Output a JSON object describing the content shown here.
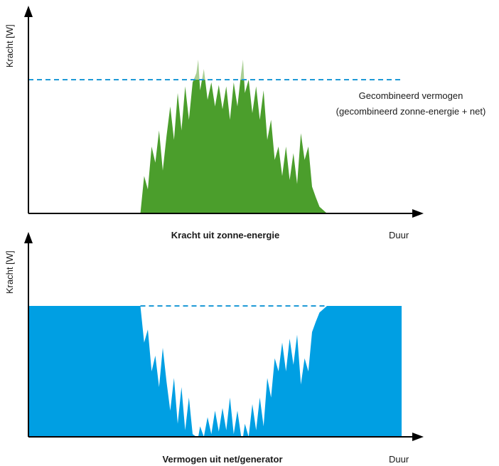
{
  "colors": {
    "solar": "#4b9e2c",
    "solar_peak": "#a9cf94",
    "grid": "#009fe3",
    "threshold": "#1f9ad6",
    "axis": "#000000"
  },
  "top_chart": {
    "ylabel": "Kracht [W]",
    "xlabel": "Kracht uit zonne-energie",
    "x_end_label": "Duur",
    "annotation_line1": "Gecombineerd vermogen",
    "annotation_line2": "(gecombineerd zonne-energie + net)"
  },
  "bottom_chart": {
    "ylabel": "Kracht [W]",
    "xlabel": "Vermogen uit net/generator",
    "x_end_label": "Duur"
  },
  "chart_data": {
    "type": "area",
    "note": "",
    "threshold_level": 1.0,
    "x_range": [
      0,
      1
    ],
    "y_range": [
      0,
      1.3
    ],
    "solar_profile": [
      [
        0.3,
        0.0
      ],
      [
        0.31,
        0.28
      ],
      [
        0.32,
        0.18
      ],
      [
        0.33,
        0.5
      ],
      [
        0.34,
        0.38
      ],
      [
        0.35,
        0.62
      ],
      [
        0.36,
        0.32
      ],
      [
        0.37,
        0.58
      ],
      [
        0.38,
        0.8
      ],
      [
        0.39,
        0.55
      ],
      [
        0.4,
        0.9
      ],
      [
        0.41,
        0.62
      ],
      [
        0.42,
        0.95
      ],
      [
        0.43,
        0.7
      ],
      [
        0.44,
        0.98
      ],
      [
        0.45,
        1.05
      ],
      [
        0.455,
        1.15
      ],
      [
        0.46,
        0.92
      ],
      [
        0.47,
        1.08
      ],
      [
        0.48,
        0.85
      ],
      [
        0.49,
        0.98
      ],
      [
        0.5,
        0.8
      ],
      [
        0.51,
        0.96
      ],
      [
        0.52,
        0.78
      ],
      [
        0.53,
        0.95
      ],
      [
        0.54,
        0.7
      ],
      [
        0.55,
        0.98
      ],
      [
        0.56,
        0.8
      ],
      [
        0.57,
        1.05
      ],
      [
        0.575,
        1.15
      ],
      [
        0.58,
        0.9
      ],
      [
        0.59,
        1.0
      ],
      [
        0.6,
        0.75
      ],
      [
        0.61,
        0.95
      ],
      [
        0.62,
        0.7
      ],
      [
        0.63,
        0.92
      ],
      [
        0.64,
        0.55
      ],
      [
        0.65,
        0.7
      ],
      [
        0.66,
        0.4
      ],
      [
        0.67,
        0.5
      ],
      [
        0.68,
        0.28
      ],
      [
        0.69,
        0.5
      ],
      [
        0.7,
        0.25
      ],
      [
        0.71,
        0.45
      ],
      [
        0.72,
        0.22
      ],
      [
        0.73,
        0.6
      ],
      [
        0.74,
        0.4
      ],
      [
        0.75,
        0.5
      ],
      [
        0.76,
        0.2
      ],
      [
        0.77,
        0.12
      ],
      [
        0.78,
        0.05
      ],
      [
        0.8,
        0.0
      ]
    ]
  }
}
